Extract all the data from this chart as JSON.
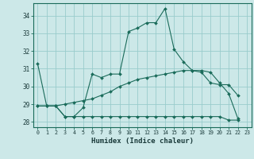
{
  "xlabel": "Humidex (Indice chaleur)",
  "bg_color": "#cce8e8",
  "grid_color": "#99cccc",
  "line_color": "#1a6b5a",
  "xlim": [
    -0.5,
    23.5
  ],
  "ylim": [
    27.7,
    34.7
  ],
  "xticks": [
    0,
    1,
    2,
    3,
    4,
    5,
    6,
    7,
    8,
    9,
    10,
    11,
    12,
    13,
    14,
    15,
    16,
    17,
    18,
    19,
    20,
    21,
    22,
    23
  ],
  "yticks": [
    28,
    29,
    30,
    31,
    32,
    33,
    34
  ],
  "series": [
    {
      "x": [
        0,
        1,
        2,
        3,
        4,
        5,
        6,
        7,
        8,
        9,
        10,
        11,
        12,
        13,
        14,
        15,
        16,
        17,
        18,
        19,
        20,
        21,
        22
      ],
      "y": [
        31.3,
        28.9,
        28.9,
        28.3,
        28.3,
        28.8,
        30.7,
        30.5,
        30.7,
        30.7,
        33.1,
        33.3,
        33.6,
        33.6,
        34.4,
        32.1,
        31.4,
        30.9,
        30.8,
        30.2,
        30.1,
        30.1,
        29.5
      ]
    },
    {
      "x": [
        0,
        1,
        2,
        3,
        4,
        5,
        6,
        7,
        8,
        9,
        10,
        11,
        12,
        13,
        14,
        15,
        16,
        17,
        18,
        19,
        20,
        21,
        22
      ],
      "y": [
        28.9,
        28.9,
        28.9,
        29.0,
        29.1,
        29.2,
        29.3,
        29.5,
        29.7,
        30.0,
        30.2,
        30.4,
        30.5,
        30.6,
        30.7,
        30.8,
        30.9,
        30.9,
        30.9,
        30.8,
        30.2,
        29.6,
        28.2
      ]
    },
    {
      "x": [
        0,
        1,
        2,
        3,
        4,
        5,
        6,
        7,
        8,
        9,
        10,
        11,
        12,
        13,
        14,
        15,
        16,
        17,
        18,
        19,
        20,
        21,
        22
      ],
      "y": [
        28.9,
        28.9,
        28.9,
        28.3,
        28.3,
        28.3,
        28.3,
        28.3,
        28.3,
        28.3,
        28.3,
        28.3,
        28.3,
        28.3,
        28.3,
        28.3,
        28.3,
        28.3,
        28.3,
        28.3,
        28.3,
        28.1,
        28.1
      ]
    }
  ]
}
